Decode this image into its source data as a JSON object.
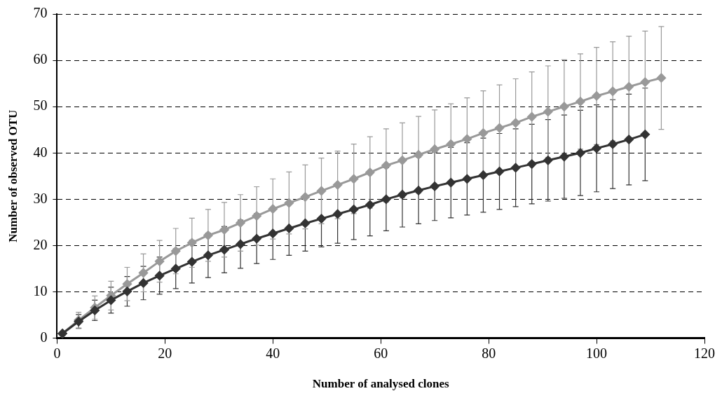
{
  "chart_data": {
    "type": "line",
    "xlabel": "Number of analysed clones",
    "ylabel": "Number of observed OTU",
    "xlim": [
      0,
      120
    ],
    "xticks": [
      0,
      20,
      40,
      60,
      80,
      100,
      120
    ],
    "ylim": [
      0,
      70
    ],
    "yticks": [
      0,
      10,
      20,
      30,
      40,
      50,
      60,
      70
    ],
    "grid": "y",
    "legend": false,
    "marker": "diamond",
    "series": [
      {
        "color": "#333333",
        "x": [
          1,
          4,
          7,
          10,
          13,
          16,
          19,
          22,
          25,
          28,
          31,
          34,
          37,
          40,
          43,
          46,
          49,
          52,
          55,
          58,
          61,
          64,
          67,
          70,
          73,
          76,
          79,
          82,
          85,
          88,
          91,
          94,
          97,
          100,
          103,
          106,
          109
        ],
        "values": [
          1,
          3.6,
          6,
          8.2,
          10.1,
          11.9,
          13.5,
          15,
          16.5,
          17.9,
          19.1,
          20.3,
          21.5,
          22.6,
          23.7,
          24.8,
          25.8,
          26.8,
          27.8,
          28.8,
          30,
          31,
          31.9,
          32.8,
          33.6,
          34.4,
          35.2,
          36,
          36.8,
          37.6,
          38.4,
          39.2,
          40,
          41,
          41.9,
          42.9,
          44
        ],
        "errors": [
          0.5,
          1.5,
          2.2,
          2.8,
          3.2,
          3.6,
          4,
          4.3,
          4.6,
          4.8,
          5,
          5.2,
          5.4,
          5.6,
          5.8,
          6,
          6.1,
          6.3,
          6.5,
          6.7,
          6.8,
          7,
          7.2,
          7.4,
          7.6,
          7.8,
          8,
          8.2,
          8.4,
          8.6,
          8.8,
          9,
          9.2,
          9.4,
          9.6,
          9.8,
          10
        ]
      },
      {
        "color": "#999999",
        "x": [
          1,
          4,
          7,
          10,
          13,
          16,
          19,
          22,
          25,
          28,
          31,
          34,
          37,
          40,
          43,
          46,
          49,
          52,
          55,
          58,
          61,
          64,
          67,
          70,
          73,
          76,
          79,
          82,
          85,
          88,
          91,
          94,
          97,
          100,
          103,
          106,
          109,
          112
        ],
        "values": [
          1,
          3.9,
          6.6,
          9.2,
          11.7,
          14.1,
          16.6,
          18.8,
          20.6,
          22.2,
          23.4,
          24.9,
          26.4,
          27.9,
          29.2,
          30.5,
          31.8,
          33.1,
          34.4,
          35.8,
          37.3,
          38.4,
          39.6,
          40.8,
          41.9,
          43,
          44.3,
          45.4,
          46.5,
          47.8,
          48.9,
          50,
          51.1,
          52.3,
          53.3,
          54.3,
          55.3,
          56.2
        ],
        "errors": [
          0.5,
          1.7,
          2.5,
          3.1,
          3.6,
          4.1,
          4.5,
          4.9,
          5.3,
          5.6,
          5.9,
          6.1,
          6.3,
          6.5,
          6.7,
          6.9,
          7.1,
          7.3,
          7.5,
          7.7,
          7.9,
          8.1,
          8.3,
          8.5,
          8.7,
          8.9,
          9.1,
          9.3,
          9.5,
          9.7,
          9.9,
          10.1,
          10.3,
          10.5,
          10.7,
          10.9,
          11,
          11.1
        ]
      }
    ]
  }
}
